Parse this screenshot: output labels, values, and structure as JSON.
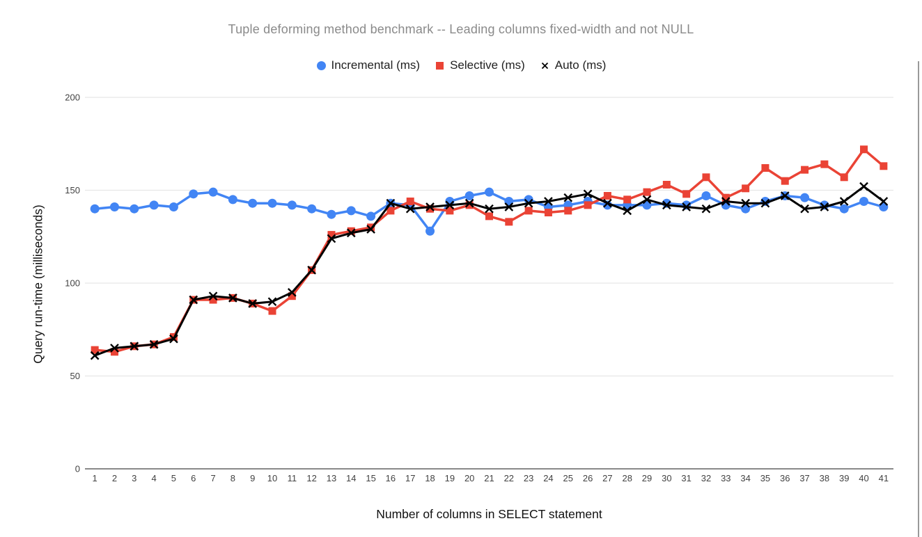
{
  "chart_data": {
    "type": "line",
    "title": "Tuple deforming method benchmark -- Leading columns fixed-width and not NULL",
    "xlabel": "Number of columns in SELECT statement",
    "ylabel": "Query run-time (milliseconds)",
    "x": [
      1,
      2,
      3,
      4,
      5,
      6,
      7,
      8,
      9,
      10,
      11,
      12,
      13,
      14,
      15,
      16,
      17,
      18,
      19,
      20,
      21,
      22,
      23,
      24,
      25,
      26,
      27,
      28,
      29,
      30,
      31,
      32,
      33,
      34,
      35,
      36,
      37,
      38,
      39,
      40,
      41
    ],
    "series": [
      {
        "name": "Incremental (ms)",
        "color": "#4285F4",
        "marker": "circle",
        "values": [
          140,
          141,
          140,
          142,
          141,
          148,
          149,
          145,
          143,
          143,
          142,
          140,
          137,
          139,
          136,
          143,
          142,
          128,
          144,
          147,
          149,
          144,
          145,
          141,
          142,
          144,
          142,
          142,
          142,
          143,
          142,
          147,
          142,
          140,
          144,
          147,
          146,
          142,
          140,
          144,
          141
        ]
      },
      {
        "name": "Selective (ms)",
        "color": "#EA4335",
        "marker": "square",
        "values": [
          64,
          63,
          66,
          67,
          71,
          91,
          91,
          92,
          89,
          85,
          93,
          107,
          126,
          128,
          130,
          139,
          144,
          140,
          139,
          142,
          136,
          133,
          139,
          138,
          139,
          142,
          147,
          145,
          149,
          153,
          148,
          157,
          146,
          151,
          162,
          155,
          161,
          164,
          157,
          172,
          163
        ]
      },
      {
        "name": "Auto (ms)",
        "color": "#000000",
        "marker": "x",
        "values": [
          61,
          65,
          66,
          67,
          70,
          91,
          93,
          92,
          89,
          90,
          95,
          107,
          124,
          127,
          129,
          143,
          140,
          141,
          142,
          143,
          140,
          141,
          143,
          144,
          146,
          148,
          143,
          139,
          145,
          142,
          141,
          140,
          144,
          143,
          143,
          147,
          140,
          141,
          144,
          152,
          144
        ]
      }
    ],
    "ylim": [
      0,
      200
    ],
    "y_ticks": [
      0,
      50,
      100,
      150,
      200
    ],
    "grid": true,
    "legend_position": "top"
  },
  "colors": {
    "title_text": "#8a8a8a",
    "legend_text": "#1f1f1f",
    "axis_title_text": "#111111",
    "tick_text": "#424242",
    "gridline": "#e6e6e6",
    "axis_line": "#616161",
    "window_edge": "#999999"
  }
}
